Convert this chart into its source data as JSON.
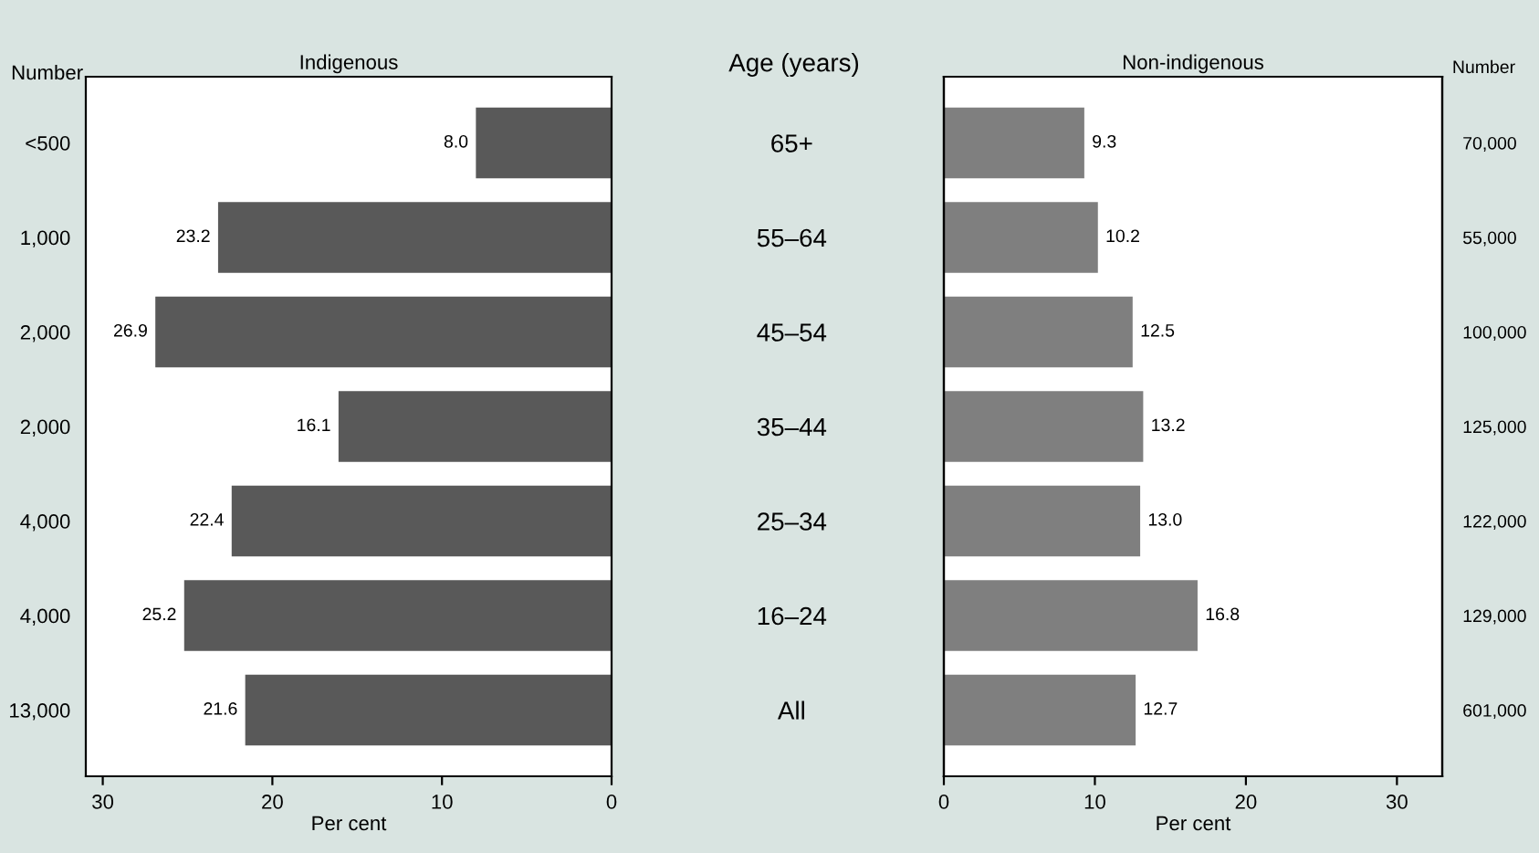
{
  "chart_data": [
    {
      "type": "bar",
      "orientation": "horizontal",
      "title": "Indigenous",
      "xlabel": "Per cent",
      "ylabel": "Number",
      "categories": [
        "<500",
        "1,000",
        "2,000",
        "2,000",
        "4,000",
        "4,000",
        "13,000"
      ],
      "values": [
        8.0,
        23.2,
        26.9,
        16.1,
        22.4,
        25.2,
        21.6
      ],
      "value_labels": [
        "8.0",
        "23.2",
        "26.9",
        "16.1",
        "22.4",
        "25.2",
        "21.6"
      ],
      "color": "#595959",
      "xlim": [
        31,
        0
      ],
      "xticks": [
        30,
        20,
        10,
        0
      ],
      "grid": false
    },
    {
      "type": "bar",
      "orientation": "horizontal",
      "title": "Non-indigenous",
      "xlabel": "Per cent",
      "ylabel": "Age (years)",
      "categories": [
        "65+",
        "55–64",
        "45–54",
        "35–44",
        "25–34",
        "16–24",
        "All"
      ],
      "y2label": "Number",
      "y2_categories": [
        "70,000",
        "55,000",
        "100,000",
        "125,000",
        "122,000",
        "129,000",
        "601,000"
      ],
      "values": [
        9.3,
        10.2,
        12.5,
        13.2,
        13.0,
        16.8,
        12.7
      ],
      "value_labels": [
        "9.3",
        "10.2",
        "12.5",
        "13.2",
        "13.0",
        "16.8",
        "12.7"
      ],
      "color": "#7f7f7f",
      "xlim": [
        0,
        33
      ],
      "xticks": [
        0,
        10,
        20,
        30
      ],
      "grid": false
    }
  ]
}
